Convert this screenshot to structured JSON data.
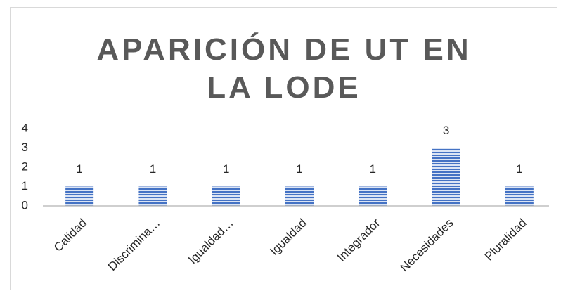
{
  "chart_data": {
    "type": "bar",
    "title": "APARICIÓN DE UT EN LA LODE",
    "categories": [
      "Calidad",
      "Discrimina…",
      "Igualdad…",
      "Igualdad",
      "Integrador",
      "Necesidades",
      "Pluralidad"
    ],
    "values": [
      1,
      1,
      1,
      1,
      1,
      3,
      1
    ],
    "color": "#4472c4",
    "ylim": [
      0,
      4
    ],
    "yticks": [
      0,
      1,
      2,
      3,
      4
    ],
    "grid": false
  }
}
